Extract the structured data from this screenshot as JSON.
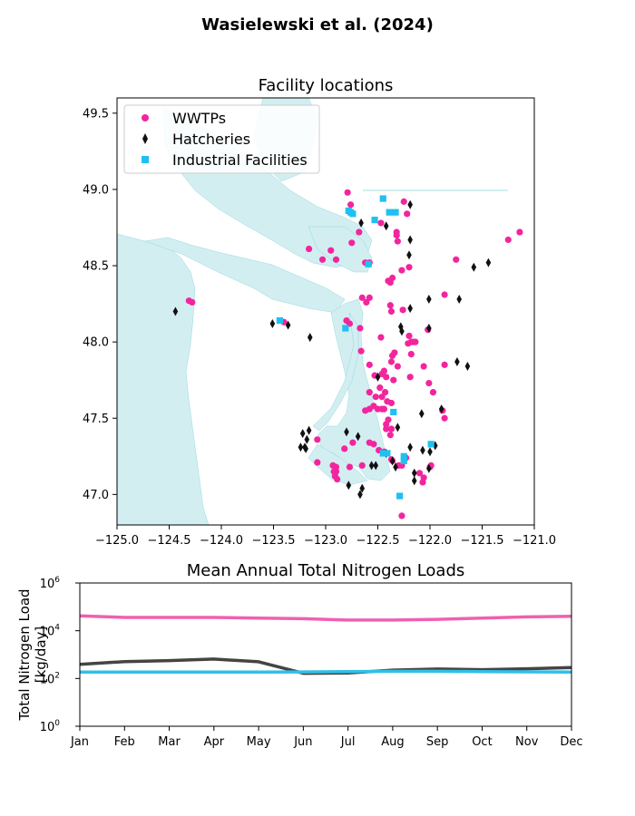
{
  "figure": {
    "suptitle": "Wasielewski et al. (2024)"
  },
  "colors": {
    "water": "#d3eef1",
    "water_edge": "#7fd3dc",
    "wwtp": "#f2259e",
    "hatchery": "#111111",
    "industrial": "#21c0f0",
    "wwtp_line": "#f060b0",
    "hatchery_line": "#444444",
    "industrial_line": "#30c0e8"
  },
  "icons": {
    "wwtp": "circle-marker",
    "hatchery": "diamond-marker",
    "industrial": "square-marker"
  },
  "chart_data": [
    {
      "type": "scatter",
      "title": "Facility locations",
      "xlabel": "",
      "ylabel": "",
      "xlim": [
        -125.0,
        -121.0
      ],
      "ylim": [
        46.8,
        49.6
      ],
      "xticks": [
        "−125.0",
        "−124.5",
        "−124.0",
        "−123.5",
        "−123.0",
        "−122.5",
        "−122.0",
        "−121.5",
        "−121.0"
      ],
      "yticks": [
        "47.0",
        "47.5",
        "48.0",
        "48.5",
        "49.0",
        "49.5"
      ],
      "grid": false,
      "legend_position": "top-left",
      "series": [
        {
          "name": "WWTPs",
          "marker": "circle",
          "points": [
            [
              -122.79,
              48.98
            ],
            [
              -122.76,
              48.9
            ],
            [
              -122.47,
              48.78
            ],
            [
              -122.25,
              48.92
            ],
            [
              -122.22,
              48.84
            ],
            [
              -122.32,
              48.72
            ],
            [
              -122.31,
              48.66
            ],
            [
              -122.32,
              48.7
            ],
            [
              -122.68,
              48.72
            ],
            [
              -122.75,
              48.65
            ],
            [
              -122.95,
              48.6
            ],
            [
              -122.9,
              48.54
            ],
            [
              -123.03,
              48.54
            ],
            [
              -123.16,
              48.61
            ],
            [
              -122.2,
              48.49
            ],
            [
              -122.27,
              48.47
            ],
            [
              -122.36,
              48.42
            ],
            [
              -122.38,
              48.39
            ],
            [
              -122.4,
              48.4
            ],
            [
              -122.58,
              48.52
            ],
            [
              -122.62,
              48.52
            ],
            [
              -122.65,
              48.29
            ],
            [
              -122.58,
              48.29
            ],
            [
              -122.61,
              48.26
            ],
            [
              -122.38,
              48.24
            ],
            [
              -122.37,
              48.2
            ],
            [
              -122.26,
              48.21
            ],
            [
              -122.8,
              48.14
            ],
            [
              -122.77,
              48.12
            ],
            [
              -122.67,
              48.09
            ],
            [
              -122.47,
              48.03
            ],
            [
              -122.2,
              48.04
            ],
            [
              -122.18,
              48.0
            ],
            [
              -122.21,
              47.99
            ],
            [
              -122.16,
              48.0
            ],
            [
              -122.14,
              48.0
            ],
            [
              -122.02,
              48.08
            ],
            [
              -122.34,
              47.93
            ],
            [
              -122.36,
              47.91
            ],
            [
              -122.37,
              47.87
            ],
            [
              -122.31,
              47.84
            ],
            [
              -122.18,
              47.92
            ],
            [
              -122.66,
              47.94
            ],
            [
              -122.58,
              47.85
            ],
            [
              -122.53,
              47.78
            ],
            [
              -122.44,
              47.81
            ],
            [
              -122.46,
              47.79
            ],
            [
              -122.42,
              47.77
            ],
            [
              -122.35,
              47.75
            ],
            [
              -122.19,
              47.77
            ],
            [
              -122.06,
              47.84
            ],
            [
              -121.86,
              47.85
            ],
            [
              -122.48,
              47.7
            ],
            [
              -122.43,
              47.67
            ],
            [
              -122.41,
              47.61
            ],
            [
              -122.46,
              47.64
            ],
            [
              -122.52,
              47.64
            ],
            [
              -122.54,
              47.58
            ],
            [
              -122.5,
              47.56
            ],
            [
              -122.01,
              47.73
            ],
            [
              -121.97,
              47.67
            ],
            [
              -121.86,
              47.5
            ],
            [
              -121.88,
              47.55
            ],
            [
              -122.58,
              47.67
            ],
            [
              -122.62,
              47.55
            ],
            [
              -122.58,
              47.56
            ],
            [
              -122.44,
              47.56
            ],
            [
              -122.37,
              47.6
            ],
            [
              -122.4,
              47.49
            ],
            [
              -122.42,
              47.46
            ],
            [
              -122.37,
              47.43
            ],
            [
              -122.42,
              47.43
            ],
            [
              -122.38,
              47.39
            ],
            [
              -122.58,
              47.34
            ],
            [
              -122.54,
              47.33
            ],
            [
              -122.49,
              47.29
            ],
            [
              -122.44,
              47.28
            ],
            [
              -122.37,
              47.23
            ],
            [
              -122.36,
              47.22
            ],
            [
              -122.3,
              47.19
            ],
            [
              -122.27,
              47.19
            ],
            [
              -122.23,
              47.24
            ],
            [
              -122.0,
              47.18
            ],
            [
              -121.99,
              47.19
            ],
            [
              -122.1,
              47.14
            ],
            [
              -122.06,
              47.11
            ],
            [
              -122.07,
              47.08
            ],
            [
              -122.74,
              47.34
            ],
            [
              -122.82,
              47.3
            ],
            [
              -122.93,
              47.19
            ],
            [
              -122.91,
              47.12
            ],
            [
              -122.92,
              47.15
            ],
            [
              -122.9,
              47.15
            ],
            [
              -122.89,
              47.1
            ],
            [
              -123.08,
              47.21
            ],
            [
              -123.08,
              47.36
            ],
            [
              -122.9,
              47.18
            ],
            [
              -122.77,
              47.18
            ],
            [
              -122.65,
              47.19
            ],
            [
              -122.27,
              46.86
            ],
            [
              -121.75,
              48.54
            ],
            [
              -121.86,
              48.31
            ],
            [
              -121.25,
              48.67
            ],
            [
              -121.14,
              48.72
            ],
            [
              -124.31,
              48.27
            ],
            [
              -124.28,
              48.26
            ],
            [
              -123.4,
              48.13
            ],
            [
              -122.46,
              47.56
            ]
          ]
        },
        {
          "name": "Hatcheries",
          "marker": "diamond",
          "points": [
            [
              -122.19,
              48.9
            ],
            [
              -122.66,
              48.78
            ],
            [
              -122.42,
              48.76
            ],
            [
              -122.19,
              48.67
            ],
            [
              -122.2,
              48.57
            ],
            [
              -121.58,
              48.49
            ],
            [
              -121.44,
              48.52
            ],
            [
              -121.72,
              48.28
            ],
            [
              -122.01,
              48.28
            ],
            [
              -122.19,
              48.22
            ],
            [
              -122.28,
              48.1
            ],
            [
              -122.27,
              48.07
            ],
            [
              -122.01,
              48.09
            ],
            [
              -123.51,
              48.12
            ],
            [
              -123.36,
              48.11
            ],
            [
              -123.15,
              48.03
            ],
            [
              -124.44,
              48.2
            ],
            [
              -122.5,
              47.77
            ],
            [
              -121.74,
              47.87
            ],
            [
              -121.64,
              47.84
            ],
            [
              -121.89,
              47.56
            ],
            [
              -122.08,
              47.53
            ],
            [
              -122.31,
              47.44
            ],
            [
              -123.24,
              47.31
            ],
            [
              -123.2,
              47.31
            ],
            [
              -123.18,
              47.36
            ],
            [
              -123.16,
              47.42
            ],
            [
              -123.22,
              47.4
            ],
            [
              -123.19,
              47.3
            ],
            [
              -122.8,
              47.41
            ],
            [
              -122.69,
              47.38
            ],
            [
              -122.42,
              47.27
            ],
            [
              -122.36,
              47.22
            ],
            [
              -122.33,
              47.18
            ],
            [
              -122.52,
              47.19
            ],
            [
              -122.56,
              47.19
            ],
            [
              -122.65,
              47.04
            ],
            [
              -122.67,
              47.0
            ],
            [
              -122.78,
              47.06
            ],
            [
              -122.19,
              47.31
            ],
            [
              -122.07,
              47.29
            ],
            [
              -121.95,
              47.32
            ],
            [
              -122.0,
              47.28
            ],
            [
              -122.01,
              47.17
            ],
            [
              -122.15,
              47.09
            ],
            [
              -122.15,
              47.14
            ]
          ]
        },
        {
          "name": "Industrial Facilities",
          "marker": "square",
          "points": [
            [
              -122.45,
              48.94
            ],
            [
              -122.78,
              48.86
            ],
            [
              -122.74,
              48.84
            ],
            [
              -122.76,
              48.85
            ],
            [
              -122.39,
              48.85
            ],
            [
              -122.33,
              48.85
            ],
            [
              -122.53,
              48.8
            ],
            [
              -122.59,
              48.51
            ],
            [
              -123.44,
              48.14
            ],
            [
              -122.81,
              48.09
            ],
            [
              -122.35,
              47.54
            ],
            [
              -122.45,
              47.27
            ],
            [
              -122.41,
              47.27
            ],
            [
              -122.25,
              47.25
            ],
            [
              -122.25,
              47.22
            ],
            [
              -121.99,
              47.33
            ],
            [
              -122.29,
              46.99
            ]
          ]
        }
      ]
    },
    {
      "type": "line",
      "title": "Mean Annual Total Nitrogen Loads",
      "xlabel": "",
      "ylabel": "Total Nitrogen Load\n[kg/day]",
      "yscale": "log",
      "ylim": [
        1,
        1000000
      ],
      "yticks": [
        {
          "base": "10",
          "exp": "0"
        },
        {
          "base": "10",
          "exp": "2"
        },
        {
          "base": "10",
          "exp": "4"
        },
        {
          "base": "10",
          "exp": "6"
        }
      ],
      "categories": [
        "Jan",
        "Feb",
        "Mar",
        "Apr",
        "May",
        "Jun",
        "Jul",
        "Aug",
        "Sep",
        "Oct",
        "Nov",
        "Dec"
      ],
      "grid": false,
      "series": [
        {
          "color_key": "wwtp_line",
          "values": [
            42000,
            36000,
            36000,
            36000,
            34000,
            32000,
            28000,
            28000,
            30000,
            34000,
            38000,
            40000
          ]
        },
        {
          "color_key": "hatchery_line",
          "values": [
            390,
            510,
            560,
            650,
            500,
            165,
            170,
            225,
            250,
            235,
            255,
            290
          ]
        },
        {
          "color_key": "industrial_line",
          "values": [
            185,
            185,
            185,
            185,
            185,
            188,
            195,
            200,
            200,
            195,
            190,
            185
          ]
        }
      ]
    }
  ]
}
